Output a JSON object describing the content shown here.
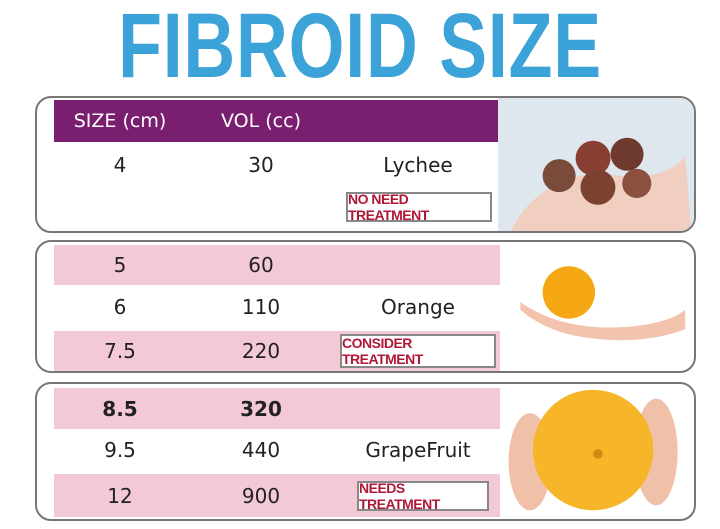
{
  "title": "FIBROID SIZE",
  "header": {
    "size": "SIZE (cm)",
    "volume": "VOL (cc)"
  },
  "groups": [
    {
      "fruit": "Lychee",
      "recommendation": "NO NEED TREATMENT",
      "image": "lychees-in-hand",
      "rows": [
        {
          "size": "4",
          "volume": "30"
        }
      ]
    },
    {
      "fruit": "Orange",
      "recommendation": "CONSIDER TREATMENT",
      "image": "orange-in-hand",
      "rows": [
        {
          "size": "5",
          "volume": "60"
        },
        {
          "size": "6",
          "volume": "110"
        },
        {
          "size": "7.5",
          "volume": "220"
        }
      ]
    },
    {
      "fruit": "GrapeFruit",
      "recommendation": "NEEDS TREATMENT",
      "image": "grapefruit-in-hands",
      "rows": [
        {
          "size": "8.5",
          "volume": "320"
        },
        {
          "size": "9.5",
          "volume": "440"
        },
        {
          "size": "12",
          "volume": "900"
        }
      ]
    }
  ],
  "colors": {
    "title": "#3ba3d8",
    "header_bg": "#7a1f6f",
    "row_pink": "#f2c9d5",
    "badge_text": "#b01737"
  }
}
